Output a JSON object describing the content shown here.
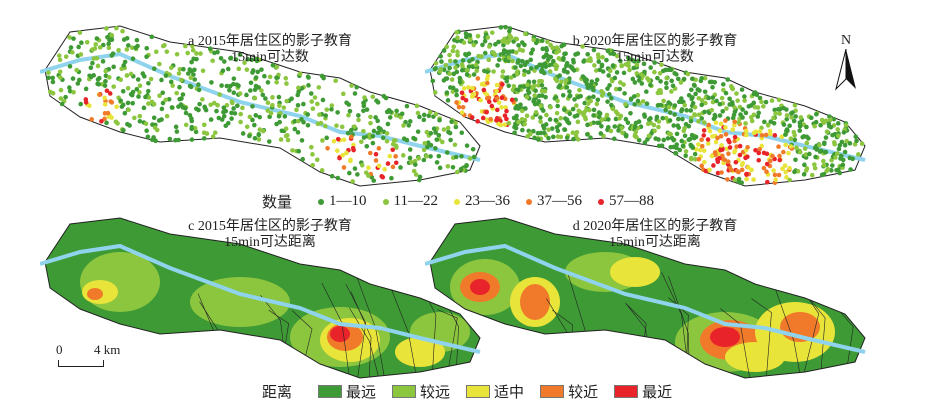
{
  "panels": [
    {
      "title": "a 2015年居住区的影子教育",
      "subtitle": "15min可达数"
    },
    {
      "title": "b 2020年居住区的影子教育",
      "subtitle": "15min可达数"
    },
    {
      "title": "c 2015年居住区的影子教育",
      "subtitle": "15min可达距离"
    },
    {
      "title": "d 2020年居住区的影子教育",
      "subtitle": "15min可达距离"
    }
  ],
  "north_label": "N",
  "scale": {
    "start": "0",
    "end": "4 km"
  },
  "count_legend": {
    "label": "数量",
    "items": [
      {
        "label": "1—10",
        "color": "#3e9a35"
      },
      {
        "label": "11—22",
        "color": "#8cc63f"
      },
      {
        "label": "23—36",
        "color": "#e8e43a"
      },
      {
        "label": "37—56",
        "color": "#f07a2a"
      },
      {
        "label": "57—88",
        "color": "#e8242a"
      }
    ]
  },
  "distance_legend": {
    "label": "距离",
    "items": [
      {
        "label": "最远",
        "color": "#3e9a35"
      },
      {
        "label": "较远",
        "color": "#8cc63f"
      },
      {
        "label": "适中",
        "color": "#e8e43a"
      },
      {
        "label": "较近",
        "color": "#f07a2a"
      },
      {
        "label": "最近",
        "color": "#e8242a"
      }
    ]
  }
}
